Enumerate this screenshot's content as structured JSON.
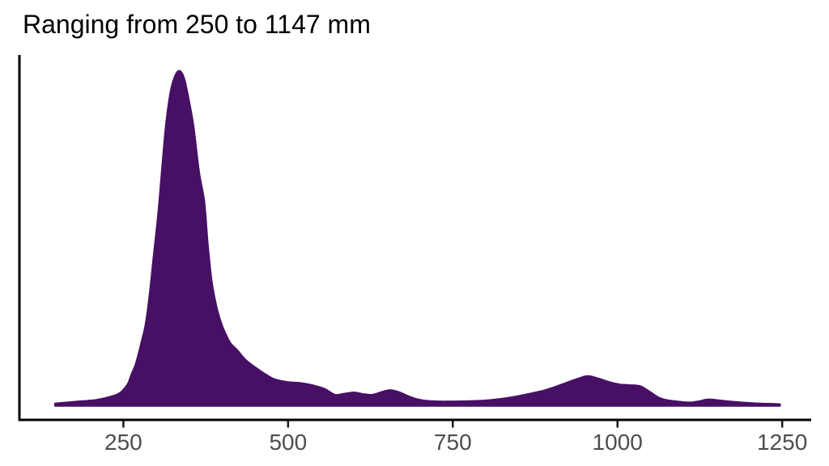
{
  "title": "Ranging from 250 to 1147 mm",
  "colors": {
    "background": "#ffffff",
    "density_fill": "#471065",
    "density_stroke": "#471065",
    "axis_line": "#000000",
    "tick_mark": "#1a1a1a",
    "tick_label": "#4d4d4d",
    "title": "#000000"
  },
  "chart_data": {
    "type": "area",
    "subtype": "density",
    "title": "Ranging from 250 to 1147 mm",
    "xlabel": "",
    "ylabel": "",
    "x_unit": "mm",
    "data_range_mm": [
      250,
      1147
    ],
    "x_ticks": [
      250,
      500,
      750,
      1000,
      1250
    ],
    "xlim": [
      91,
      1294
    ],
    "ylim": [
      0,
      1.05
    ],
    "y_axis_labels_shown": false,
    "grid": false,
    "legend": false,
    "series": [
      {
        "name": "density",
        "points": [
          [
            147,
            0.004
          ],
          [
            165,
            0.007
          ],
          [
            182,
            0.01
          ],
          [
            196,
            0.012
          ],
          [
            210,
            0.015
          ],
          [
            222,
            0.02
          ],
          [
            232,
            0.025
          ],
          [
            241,
            0.031
          ],
          [
            248,
            0.04
          ],
          [
            253,
            0.051
          ],
          [
            258,
            0.065
          ],
          [
            263,
            0.092
          ],
          [
            269,
            0.12
          ],
          [
            274,
            0.155
          ],
          [
            279,
            0.195
          ],
          [
            284,
            0.237
          ],
          [
            290,
            0.32
          ],
          [
            297,
            0.45
          ],
          [
            304,
            0.58
          ],
          [
            310,
            0.72
          ],
          [
            316,
            0.85
          ],
          [
            323,
            0.945
          ],
          [
            330,
            0.99
          ],
          [
            336,
            1.0
          ],
          [
            342,
            0.975
          ],
          [
            350,
            0.9
          ],
          [
            356,
            0.83
          ],
          [
            364,
            0.7
          ],
          [
            372,
            0.61
          ],
          [
            377,
            0.49
          ],
          [
            383,
            0.375
          ],
          [
            390,
            0.3
          ],
          [
            397,
            0.25
          ],
          [
            404,
            0.215
          ],
          [
            412,
            0.185
          ],
          [
            422,
            0.165
          ],
          [
            435,
            0.135
          ],
          [
            450,
            0.112
          ],
          [
            465,
            0.092
          ],
          [
            480,
            0.076
          ],
          [
            500,
            0.068
          ],
          [
            520,
            0.065
          ],
          [
            538,
            0.058
          ],
          [
            555,
            0.048
          ],
          [
            571,
            0.03
          ],
          [
            585,
            0.033
          ],
          [
            600,
            0.037
          ],
          [
            614,
            0.032
          ],
          [
            628,
            0.03
          ],
          [
            642,
            0.038
          ],
          [
            655,
            0.044
          ],
          [
            668,
            0.038
          ],
          [
            681,
            0.027
          ],
          [
            695,
            0.017
          ],
          [
            710,
            0.012
          ],
          [
            730,
            0.01
          ],
          [
            750,
            0.01
          ],
          [
            775,
            0.011
          ],
          [
            800,
            0.013
          ],
          [
            820,
            0.017
          ],
          [
            841,
            0.023
          ],
          [
            862,
            0.031
          ],
          [
            883,
            0.04
          ],
          [
            900,
            0.05
          ],
          [
            920,
            0.064
          ],
          [
            940,
            0.078
          ],
          [
            955,
            0.086
          ],
          [
            972,
            0.078
          ],
          [
            988,
            0.068
          ],
          [
            1003,
            0.061
          ],
          [
            1018,
            0.059
          ],
          [
            1034,
            0.056
          ],
          [
            1048,
            0.04
          ],
          [
            1062,
            0.022
          ],
          [
            1075,
            0.014
          ],
          [
            1087,
            0.011
          ],
          [
            1100,
            0.008
          ],
          [
            1112,
            0.007
          ],
          [
            1125,
            0.011
          ],
          [
            1138,
            0.016
          ],
          [
            1155,
            0.013
          ],
          [
            1175,
            0.009
          ],
          [
            1195,
            0.006
          ],
          [
            1214,
            0.004
          ],
          [
            1230,
            0.003
          ],
          [
            1246,
            0.002
          ]
        ]
      }
    ]
  }
}
